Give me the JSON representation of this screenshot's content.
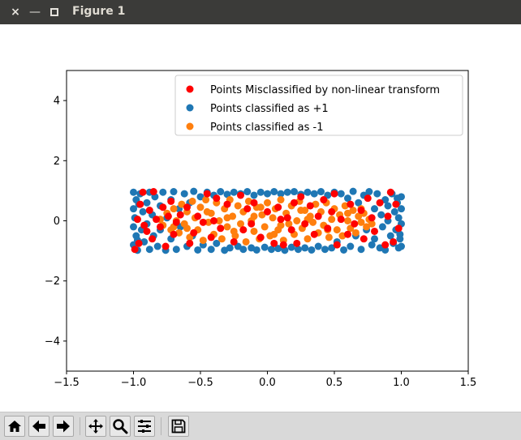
{
  "window": {
    "title": "Figure 1",
    "close_glyph": "×",
    "min_glyph": "—"
  },
  "toolbar": {
    "tools": [
      "home-icon",
      "back-arrow-icon",
      "forward-arrow-icon",
      "pan-icon",
      "zoom-icon",
      "subplots-icon",
      "save-icon"
    ]
  },
  "chart_data": {
    "type": "scatter",
    "title": "",
    "xlabel": "",
    "ylabel": "",
    "xlim": [
      -1.5,
      1.5
    ],
    "ylim": [
      -5,
      5
    ],
    "xticks": [
      -1.5,
      -1.0,
      -0.5,
      0.0,
      0.5,
      1.0,
      1.5
    ],
    "xtick_labels": [
      "−1.5",
      "−1.0",
      "−0.5",
      "0.0",
      "0.5",
      "1.0",
      "1.5"
    ],
    "yticks": [
      -4,
      -2,
      0,
      2,
      4
    ],
    "ytick_labels": [
      "−4",
      "−2",
      "0",
      "2",
      "4"
    ],
    "grid": false,
    "legend_placement": "top-right",
    "legend": [
      {
        "label": "Points Misclassified by non-linear transform",
        "color": "#ff0000"
      },
      {
        "label": "Points classified as +1",
        "color": "#1f77b4"
      },
      {
        "label": "Points classified as -1",
        "color": "#ff7f0e"
      }
    ],
    "series": [
      {
        "name": "Points classified as +1",
        "color": "#1f77b4",
        "points": [
          [
            -1.0,
            0.95
          ],
          [
            -0.98,
            0.7
          ],
          [
            -1.0,
            0.4
          ],
          [
            -0.99,
            0.1
          ],
          [
            -1.0,
            -0.2
          ],
          [
            -0.98,
            -0.5
          ],
          [
            -1.0,
            -0.8
          ],
          [
            -0.97,
            -0.98
          ],
          [
            -0.95,
            0.9
          ],
          [
            -0.93,
            0.3
          ],
          [
            -0.94,
            -0.3
          ],
          [
            -0.92,
            -0.7
          ],
          [
            -0.9,
            0.6
          ],
          [
            -0.9,
            -0.1
          ],
          [
            -0.88,
            0.95
          ],
          [
            -0.88,
            -0.95
          ],
          [
            -0.86,
            0.2
          ],
          [
            -0.85,
            -0.5
          ],
          [
            -0.84,
            0.8
          ],
          [
            -0.82,
            -0.85
          ],
          [
            -0.8,
            0.5
          ],
          [
            -0.8,
            -0.3
          ],
          [
            -0.78,
            0.95
          ],
          [
            -0.76,
            -0.98
          ],
          [
            -0.75,
            0.1
          ],
          [
            -0.72,
            0.7
          ],
          [
            -0.72,
            -0.6
          ],
          [
            -0.7,
            0.97
          ],
          [
            -0.68,
            -0.95
          ],
          [
            -0.66,
            0.4
          ],
          [
            -0.65,
            -0.2
          ],
          [
            -0.62,
            0.9
          ],
          [
            -0.6,
            -0.85
          ],
          [
            -0.58,
            0.6
          ],
          [
            -0.56,
            -0.5
          ],
          [
            -0.55,
            0.98
          ],
          [
            -0.52,
            -0.97
          ],
          [
            -0.5,
            0.8
          ],
          [
            -0.48,
            -0.8
          ],
          [
            -0.45,
            0.95
          ],
          [
            -0.42,
            -0.95
          ],
          [
            -0.4,
            0.85
          ],
          [
            -0.38,
            -0.75
          ],
          [
            -0.35,
            0.97
          ],
          [
            -0.32,
            -0.98
          ],
          [
            -0.3,
            0.88
          ],
          [
            -0.28,
            -0.9
          ],
          [
            -0.25,
            0.95
          ],
          [
            -0.22,
            -0.85
          ],
          [
            -0.2,
            0.9
          ],
          [
            -0.18,
            -0.95
          ],
          [
            -0.15,
            0.97
          ],
          [
            -0.12,
            -0.9
          ],
          [
            -0.1,
            0.85
          ],
          [
            -0.08,
            -0.97
          ],
          [
            -0.05,
            0.95
          ],
          [
            -0.02,
            -0.88
          ],
          [
            0.0,
            0.9
          ],
          [
            0.03,
            -0.95
          ],
          [
            0.05,
            0.97
          ],
          [
            0.08,
            -0.92
          ],
          [
            0.1,
            0.9
          ],
          [
            0.13,
            -0.98
          ],
          [
            0.15,
            0.95
          ],
          [
            0.18,
            -0.88
          ],
          [
            0.2,
            0.97
          ],
          [
            0.23,
            -0.95
          ],
          [
            0.25,
            0.88
          ],
          [
            0.28,
            -0.9
          ],
          [
            0.3,
            0.95
          ],
          [
            0.33,
            -0.97
          ],
          [
            0.35,
            0.9
          ],
          [
            0.38,
            -0.85
          ],
          [
            0.4,
            0.97
          ],
          [
            0.43,
            -0.95
          ],
          [
            0.45,
            0.85
          ],
          [
            0.48,
            -0.9
          ],
          [
            0.5,
            0.95
          ],
          [
            0.52,
            -0.7
          ],
          [
            0.55,
            0.9
          ],
          [
            0.57,
            -0.97
          ],
          [
            0.6,
            0.75
          ],
          [
            0.62,
            -0.85
          ],
          [
            0.64,
            0.98
          ],
          [
            0.66,
            -0.5
          ],
          [
            0.68,
            0.6
          ],
          [
            0.7,
            -0.95
          ],
          [
            0.72,
            0.85
          ],
          [
            0.74,
            -0.3
          ],
          [
            0.76,
            0.97
          ],
          [
            0.78,
            -0.8
          ],
          [
            0.8,
            0.4
          ],
          [
            0.8,
            -0.6
          ],
          [
            0.82,
            0.9
          ],
          [
            0.84,
            -0.9
          ],
          [
            0.85,
            0.2
          ],
          [
            0.86,
            -0.2
          ],
          [
            0.88,
            0.7
          ],
          [
            0.88,
            -0.97
          ],
          [
            0.9,
            0.0
          ],
          [
            0.9,
            0.5
          ],
          [
            0.92,
            -0.5
          ],
          [
            0.93,
            0.9
          ],
          [
            0.94,
            -0.75
          ],
          [
            0.95,
            0.3
          ],
          [
            0.96,
            -0.3
          ],
          [
            0.97,
            0.6
          ],
          [
            0.98,
            -0.9
          ],
          [
            0.98,
            0.1
          ],
          [
            0.99,
            -0.6
          ],
          [
            1.0,
            0.8
          ],
          [
            1.0,
            -0.1
          ],
          [
            1.0,
            0.4
          ],
          [
            1.0,
            -0.85
          ],
          [
            -0.96,
            0.55
          ],
          [
            -0.97,
            -0.65
          ],
          [
            0.97,
            0.75
          ],
          [
            0.99,
            -0.45
          ]
        ]
      },
      {
        "name": "Points classified as -1",
        "color": "#ff7f0e",
        "points": [
          [
            -0.8,
            0.05
          ],
          [
            -0.78,
            -0.15
          ],
          [
            -0.75,
            0.25
          ],
          [
            -0.72,
            -0.3
          ],
          [
            -0.7,
            0.4
          ],
          [
            -0.68,
            0.0
          ],
          [
            -0.66,
            -0.4
          ],
          [
            -0.64,
            0.55
          ],
          [
            -0.62,
            -0.1
          ],
          [
            -0.6,
            0.3
          ],
          [
            -0.58,
            -0.55
          ],
          [
            -0.56,
            0.65
          ],
          [
            -0.54,
            0.1
          ],
          [
            -0.52,
            -0.3
          ],
          [
            -0.5,
            0.45
          ],
          [
            -0.48,
            -0.65
          ],
          [
            -0.46,
            0.7
          ],
          [
            -0.44,
            -0.05
          ],
          [
            -0.42,
            0.25
          ],
          [
            -0.4,
            -0.45
          ],
          [
            -0.38,
            0.6
          ],
          [
            -0.36,
            0.0
          ],
          [
            -0.34,
            -0.6
          ],
          [
            -0.32,
            0.4
          ],
          [
            -0.3,
            -0.2
          ],
          [
            -0.28,
            0.7
          ],
          [
            -0.26,
            0.15
          ],
          [
            -0.24,
            -0.5
          ],
          [
            -0.22,
            0.5
          ],
          [
            -0.2,
            -0.1
          ],
          [
            -0.18,
            0.3
          ],
          [
            -0.16,
            -0.7
          ],
          [
            -0.14,
            0.65
          ],
          [
            -0.12,
            0.0
          ],
          [
            -0.1,
            -0.35
          ],
          [
            -0.08,
            0.45
          ],
          [
            -0.06,
            -0.6
          ],
          [
            -0.04,
            0.2
          ],
          [
            -0.02,
            -0.2
          ],
          [
            0.0,
            0.6
          ],
          [
            0.02,
            -0.5
          ],
          [
            0.04,
            0.1
          ],
          [
            0.06,
            0.4
          ],
          [
            0.08,
            -0.3
          ],
          [
            0.1,
            0.7
          ],
          [
            0.12,
            -0.65
          ],
          [
            0.14,
            0.25
          ],
          [
            0.16,
            -0.1
          ],
          [
            0.18,
            0.5
          ],
          [
            0.2,
            -0.45
          ],
          [
            0.22,
            0.0
          ],
          [
            0.24,
            0.65
          ],
          [
            0.26,
            -0.25
          ],
          [
            0.28,
            0.35
          ],
          [
            0.3,
            -0.6
          ],
          [
            0.32,
            0.15
          ],
          [
            0.34,
            -0.05
          ],
          [
            0.36,
            0.55
          ],
          [
            0.38,
            -0.4
          ],
          [
            0.4,
            0.3
          ],
          [
            0.42,
            -0.15
          ],
          [
            0.44,
            0.6
          ],
          [
            0.46,
            -0.55
          ],
          [
            0.48,
            0.05
          ],
          [
            0.5,
            0.4
          ],
          [
            0.52,
            -0.3
          ],
          [
            0.54,
            0.2
          ],
          [
            0.56,
            -0.5
          ],
          [
            0.58,
            0.5
          ],
          [
            0.6,
            0.0
          ],
          [
            0.62,
            -0.25
          ],
          [
            0.64,
            0.35
          ],
          [
            0.66,
            -0.4
          ],
          [
            0.68,
            0.15
          ],
          [
            0.7,
            -0.05
          ],
          [
            0.72,
            0.25
          ],
          [
            0.74,
            -0.2
          ],
          [
            0.76,
            0.05
          ],
          [
            0.78,
            -0.1
          ],
          [
            0.7,
            0.4
          ],
          [
            -0.7,
            -0.2
          ],
          [
            -0.3,
            0.1
          ],
          [
            0.3,
            0.05
          ],
          [
            0.1,
            -0.15
          ],
          [
            -0.1,
            0.15
          ],
          [
            0.45,
            -0.3
          ],
          [
            -0.45,
            0.3
          ],
          [
            0.6,
            0.25
          ],
          [
            -0.6,
            -0.25
          ],
          [
            0.25,
            0.35
          ],
          [
            -0.25,
            -0.35
          ],
          [
            0.05,
            -0.45
          ],
          [
            -0.05,
            0.45
          ]
        ]
      },
      {
        "name": "Points Misclassified by non-linear transform",
        "color": "#ff0000",
        "points": [
          [
            -0.99,
            -0.95
          ],
          [
            -0.97,
            0.05
          ],
          [
            -0.96,
            -0.75
          ],
          [
            -0.95,
            0.55
          ],
          [
            -0.93,
            0.95
          ],
          [
            -0.92,
            -0.15
          ],
          [
            -0.9,
            -0.35
          ],
          [
            -0.88,
            0.35
          ],
          [
            -0.86,
            -0.6
          ],
          [
            -0.85,
            0.97
          ],
          [
            -0.83,
            0.05
          ],
          [
            -0.8,
            -0.2
          ],
          [
            -0.78,
            0.45
          ],
          [
            -0.76,
            -0.85
          ],
          [
            -0.74,
            0.15
          ],
          [
            -0.72,
            0.65
          ],
          [
            -0.7,
            -0.45
          ],
          [
            -0.68,
            -0.05
          ],
          [
            -0.65,
            0.2
          ],
          [
            -0.6,
            0.45
          ],
          [
            -0.58,
            -0.75
          ],
          [
            -0.55,
            -0.4
          ],
          [
            -0.52,
            0.15
          ],
          [
            -0.48,
            -0.05
          ],
          [
            -0.45,
            0.9
          ],
          [
            -0.42,
            -0.55
          ],
          [
            -0.38,
            0.75
          ],
          [
            -0.35,
            -0.25
          ],
          [
            -0.3,
            0.55
          ],
          [
            -0.25,
            -0.7
          ],
          [
            -0.2,
            0.85
          ],
          [
            -0.18,
            -0.3
          ],
          [
            -0.15,
            0.4
          ],
          [
            -0.12,
            -0.1
          ],
          [
            -0.1,
            0.6
          ],
          [
            -0.05,
            -0.55
          ],
          [
            0.0,
            0.3
          ],
          [
            0.05,
            -0.75
          ],
          [
            0.08,
            0.45
          ],
          [
            0.12,
            -0.8
          ],
          [
            0.15,
            0.1
          ],
          [
            0.18,
            -0.3
          ],
          [
            0.2,
            0.6
          ],
          [
            0.22,
            -0.75
          ],
          [
            0.25,
            0.8
          ],
          [
            0.28,
            -0.1
          ],
          [
            0.32,
            0.5
          ],
          [
            0.35,
            -0.45
          ],
          [
            0.38,
            0.15
          ],
          [
            0.42,
            0.7
          ],
          [
            0.45,
            -0.25
          ],
          [
            0.48,
            0.3
          ],
          [
            0.5,
            0.9
          ],
          [
            0.52,
            -0.8
          ],
          [
            0.55,
            0.05
          ],
          [
            0.6,
            -0.45
          ],
          [
            0.62,
            0.55
          ],
          [
            0.65,
            -0.1
          ],
          [
            0.7,
            0.35
          ],
          [
            0.72,
            -0.6
          ],
          [
            0.75,
            0.75
          ],
          [
            0.78,
            0.1
          ],
          [
            0.8,
            -0.35
          ],
          [
            0.84,
            0.6
          ],
          [
            0.88,
            -0.8
          ],
          [
            0.9,
            0.15
          ],
          [
            0.92,
            0.95
          ],
          [
            0.94,
            -0.7
          ],
          [
            0.96,
            0.55
          ],
          [
            0.98,
            -0.25
          ],
          [
            -0.4,
            0.0
          ],
          [
            0.1,
            0.05
          ]
        ]
      }
    ]
  }
}
